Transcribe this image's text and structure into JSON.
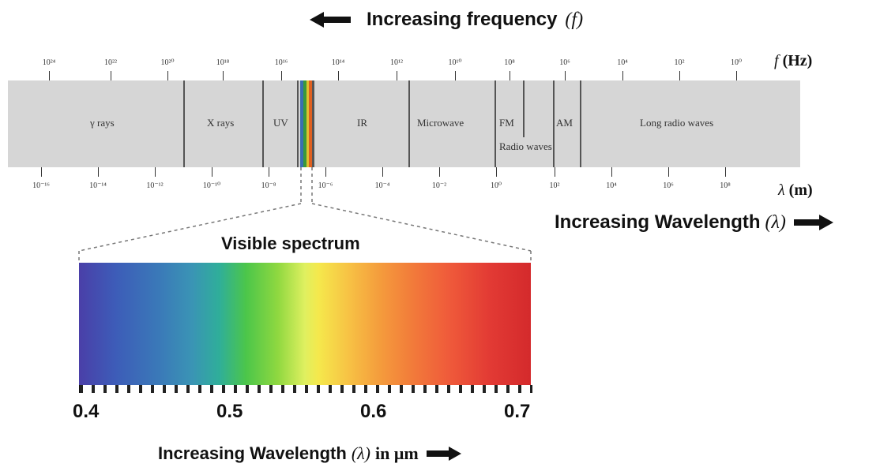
{
  "top_heading": {
    "label": "Increasing frequency",
    "symbol": "(f)"
  },
  "frequency_axis": {
    "unit_symbol": "f",
    "unit": "(Hz)",
    "ticks": [
      "10²⁴",
      "10²²",
      "10²⁰",
      "10¹⁸",
      "10¹⁶",
      "10¹⁴",
      "10¹²",
      "10¹⁰",
      "10⁸",
      "10⁶",
      "10⁴",
      "10²",
      "10⁰"
    ]
  },
  "wavelength_axis": {
    "unit_symbol": "λ",
    "unit": "(m)",
    "ticks": [
      "10⁻¹⁶",
      "10⁻¹⁴",
      "10⁻¹²",
      "10⁻¹⁰",
      "10⁻⁸",
      "10⁻⁶",
      "10⁻⁴",
      "10⁻²",
      "10⁰",
      "10²",
      "10⁴",
      "10⁶",
      "10⁸"
    ]
  },
  "bands": {
    "gamma": "γ rays",
    "xray": "X rays",
    "uv": "UV",
    "ir": "IR",
    "microwave": "Microwave",
    "fm": "FM",
    "am": "AM",
    "radio": "Radio waves",
    "long_radio": "Long radio waves"
  },
  "wavelength_heading": {
    "label": "Increasing Wavelength",
    "symbol": "(λ)"
  },
  "visible": {
    "title": "Visible spectrum",
    "ticks": [
      "0.4",
      "0.5",
      "0.6",
      "0.7"
    ]
  },
  "bottom_heading": {
    "label": "Increasing Wavelength",
    "symbol": "(λ)",
    "unit": "in μm"
  }
}
